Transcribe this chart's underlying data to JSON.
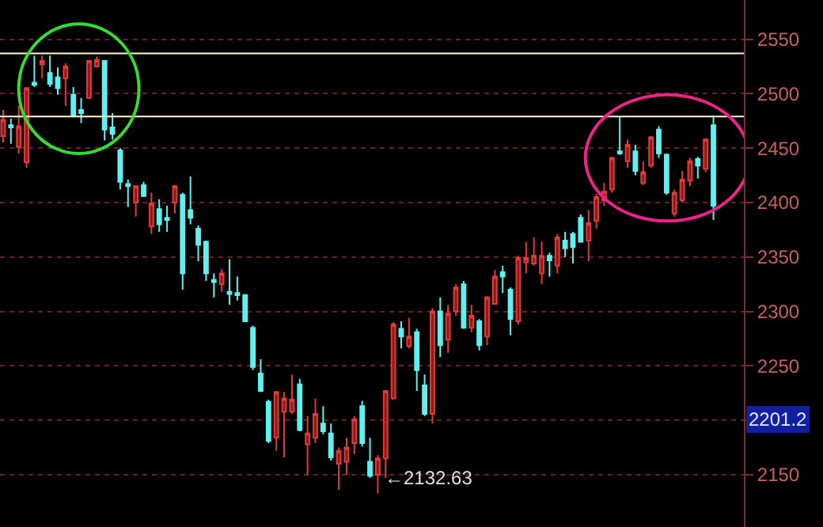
{
  "chart_data": {
    "type": "candlestick",
    "categories": [
      null,
      null,
      null,
      null,
      null,
      null,
      null,
      null,
      null,
      null,
      null,
      null,
      null,
      null,
      null,
      null,
      null,
      null,
      null,
      null,
      null,
      null,
      null,
      null,
      null,
      null,
      null,
      null,
      null,
      null,
      null,
      null,
      null,
      null,
      null,
      null,
      null,
      null,
      null,
      null,
      null,
      null,
      null,
      null,
      null,
      null,
      null,
      null,
      null,
      null,
      null,
      null,
      null,
      null,
      null,
      null,
      null,
      null,
      null,
      null,
      null,
      null,
      null,
      null,
      null,
      null,
      null,
      null,
      null,
      null,
      null,
      null,
      null,
      null,
      null,
      null,
      null,
      null,
      null,
      null,
      null,
      null,
      null,
      null,
      null,
      null,
      null,
      null,
      null,
      null,
      null,
      null
    ],
    "ohlc": [
      [
        2461,
        2485,
        2455,
        2476
      ],
      [
        2471,
        2477,
        2454,
        2469
      ],
      [
        2451,
        2489,
        2445,
        2470
      ],
      [
        2437,
        2506,
        2432,
        2505
      ],
      [
        2510,
        2535,
        2506,
        2508
      ],
      [
        2527,
        2535,
        2514,
        2530
      ],
      [
        2519,
        2535,
        2506,
        2509
      ],
      [
        2515,
        2524,
        2499,
        2505
      ],
      [
        2514,
        2528,
        2489,
        2525
      ],
      [
        2499,
        2506,
        2479,
        2480
      ],
      [
        2485,
        2496,
        2473,
        2482
      ],
      [
        2496,
        2531,
        2495,
        2530
      ],
      [
        2525,
        2534,
        2524,
        2531
      ],
      [
        2530,
        2531,
        2457,
        2467
      ],
      [
        2469,
        2482,
        2458,
        2463
      ],
      [
        2448,
        2450,
        2412,
        2419
      ],
      [
        2417,
        2421,
        2396,
        2415
      ],
      [
        2400,
        2416,
        2387,
        2415
      ],
      [
        2416,
        2419,
        2405,
        2406
      ],
      [
        2378,
        2409,
        2371,
        2399
      ],
      [
        2394,
        2403,
        2373,
        2380
      ],
      [
        2386,
        2397,
        2373,
        2384
      ],
      [
        2400,
        2416,
        2390,
        2415
      ],
      [
        2407,
        2409,
        2320,
        2335
      ],
      [
        2393,
        2424,
        2380,
        2386
      ],
      [
        2376,
        2379,
        2346,
        2361
      ],
      [
        2364,
        2365,
        2328,
        2335
      ],
      [
        2329,
        2335,
        2313,
        2327
      ],
      [
        2325,
        2339,
        2318,
        2335
      ],
      [
        2318,
        2348,
        2306,
        2316
      ],
      [
        2317,
        2332,
        2310,
        2315
      ],
      [
        2315,
        2316,
        2290,
        2291
      ],
      [
        2285,
        2287,
        2246,
        2249
      ],
      [
        2243,
        2256,
        2226,
        2227
      ],
      [
        2217,
        2219,
        2179,
        2181
      ],
      [
        2184,
        2227,
        2172,
        2226
      ],
      [
        2208,
        2226,
        2166,
        2220
      ],
      [
        2208,
        2242,
        2206,
        2219
      ],
      [
        2233,
        2238,
        2190,
        2191
      ],
      [
        2178,
        2204,
        2150,
        2188
      ],
      [
        2184,
        2220,
        2179,
        2206
      ],
      [
        2197,
        2213,
        2187,
        2190
      ],
      [
        2188,
        2197,
        2163,
        2166
      ],
      [
        2160,
        2175,
        2136,
        2172
      ],
      [
        2162,
        2184,
        2150,
        2175
      ],
      [
        2179,
        2204,
        2169,
        2201
      ],
      [
        2213,
        2218,
        2176,
        2179
      ],
      [
        2162,
        2184,
        2147,
        2149
      ],
      [
        2150,
        2168,
        2132.63,
        2165
      ],
      [
        2165,
        2227,
        2147,
        2227
      ],
      [
        2220,
        2290,
        2219,
        2288
      ],
      [
        2284,
        2291,
        2266,
        2277
      ],
      [
        2268,
        2294,
        2266,
        2277
      ],
      [
        2281,
        2284,
        2227,
        2246
      ],
      [
        2232,
        2242,
        2204,
        2206
      ],
      [
        2206,
        2303,
        2197,
        2300
      ],
      [
        2300,
        2313,
        2258,
        2269
      ],
      [
        2274,
        2306,
        2262,
        2298
      ],
      [
        2300,
        2325,
        2296,
        2322
      ],
      [
        2325,
        2328,
        2284,
        2285
      ],
      [
        2285,
        2306,
        2281,
        2296
      ],
      [
        2291,
        2293,
        2264,
        2269
      ],
      [
        2277,
        2314,
        2269,
        2313
      ],
      [
        2307,
        2338,
        2306,
        2332
      ],
      [
        2336,
        2342,
        2317,
        2332
      ],
      [
        2320,
        2322,
        2278,
        2293
      ],
      [
        2291,
        2351,
        2288,
        2349
      ],
      [
        2345,
        2364,
        2335,
        2349
      ],
      [
        2344,
        2368,
        2342,
        2351
      ],
      [
        2335,
        2364,
        2325,
        2351
      ],
      [
        2351,
        2354,
        2332,
        2347
      ],
      [
        2342,
        2371,
        2335,
        2368
      ],
      [
        2365,
        2373,
        2350,
        2358
      ],
      [
        2371,
        2373,
        2344,
        2359
      ],
      [
        2386,
        2389,
        2363,
        2364
      ],
      [
        2365,
        2393,
        2346,
        2381
      ],
      [
        2383,
        2408,
        2376,
        2405
      ],
      [
        2402,
        2418,
        2397,
        2410
      ],
      [
        2412,
        2442,
        2409,
        2441
      ],
      [
        2447,
        2479,
        2444,
        2445
      ],
      [
        2438,
        2458,
        2432,
        2453
      ],
      [
        2447,
        2453,
        2425,
        2429
      ],
      [
        2418,
        2438,
        2416,
        2428
      ],
      [
        2434,
        2461,
        2432,
        2460
      ],
      [
        2467,
        2470,
        2441,
        2445
      ],
      [
        2444,
        2445,
        2407,
        2409
      ],
      [
        2390,
        2412,
        2387,
        2409
      ],
      [
        2402,
        2429,
        2400,
        2421
      ],
      [
        2420,
        2441,
        2415,
        2438
      ],
      [
        2440,
        2442,
        2422,
        2434
      ],
      [
        2431,
        2459,
        2428,
        2458
      ],
      [
        2471,
        2480,
        2384,
        2397
      ]
    ],
    "ylim": [
      2102,
      2586
    ],
    "yticks": [
      2150,
      {
        "value": 2200,
        "label": null
      },
      2250,
      2300,
      2350,
      2400,
      2450,
      2500,
      2550
    ],
    "grid": "y",
    "tick_labels": "y",
    "ref_lines": [
      {
        "axis": "y",
        "value": 2537,
        "color": "#fffbd0"
      },
      {
        "axis": "y",
        "value": 2479,
        "color": "#fffbd0"
      }
    ],
    "annotations": [
      "←2132.63",
      "2201.2"
    ]
  }
}
